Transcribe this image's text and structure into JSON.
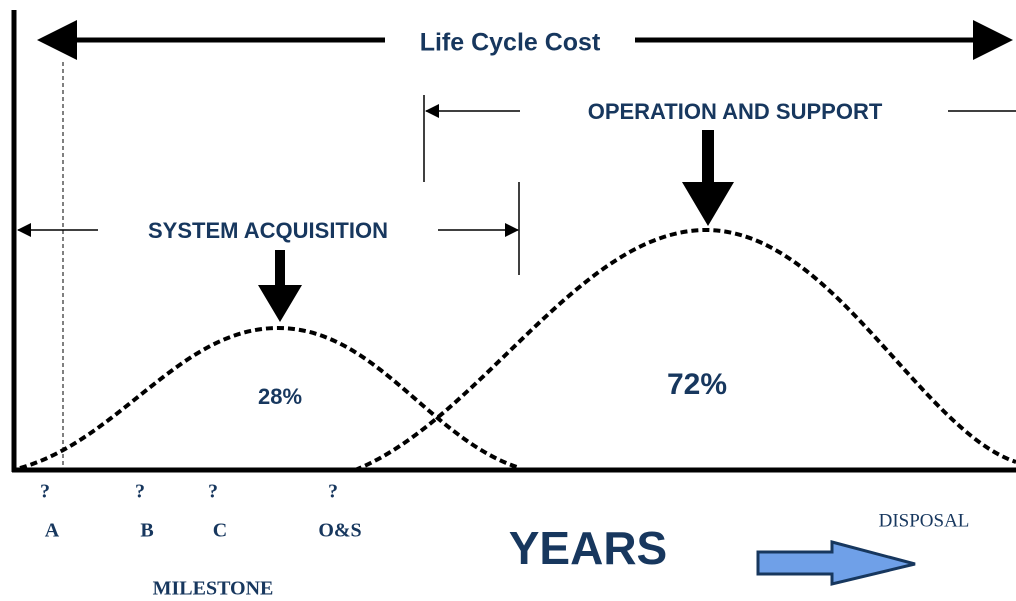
{
  "header": {
    "title": "Life Cycle Cost"
  },
  "phases": [
    {
      "label": "OPERATION AND SUPPORT"
    },
    {
      "label": "SYSTEM ACQUISITION"
    }
  ],
  "shares": [
    "28%",
    "72%"
  ],
  "milestones": [
    {
      "mark": "?",
      "label": "A"
    },
    {
      "mark": "?",
      "label": "B"
    },
    {
      "mark": "?",
      "label": "C"
    },
    {
      "mark": "?",
      "label": "O&S"
    }
  ],
  "axis": {
    "x_label": "YEARS",
    "end_label": "DISPOSAL",
    "milestone_label": "MILESTONE"
  }
}
